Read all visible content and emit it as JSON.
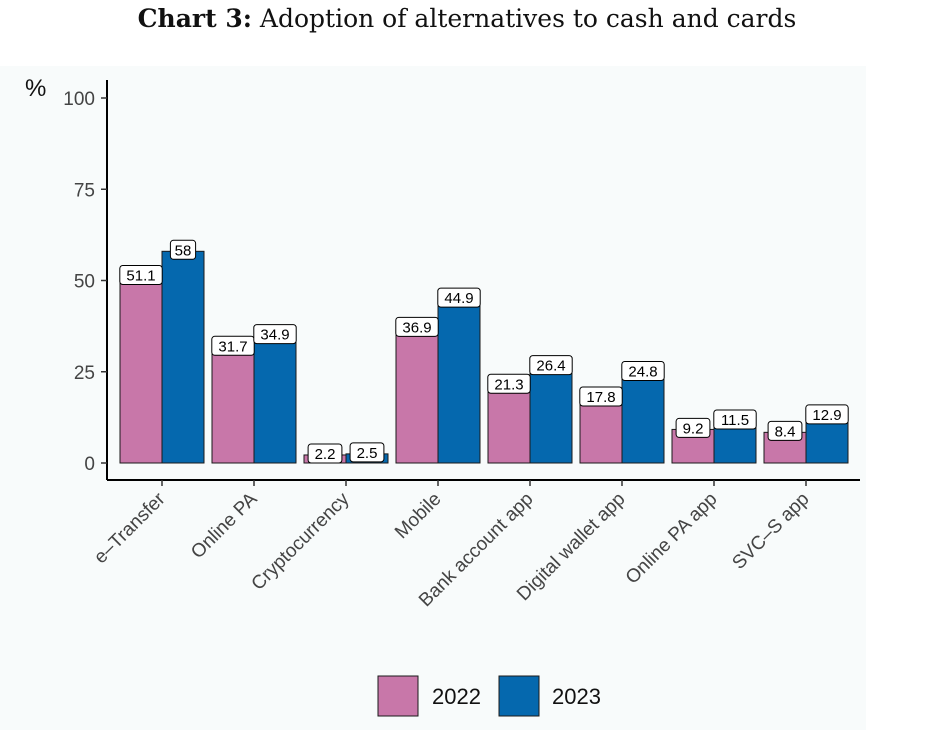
{
  "title": {
    "lead": "Chart 3:",
    "text": "Adoption of alternatives to cash and cards"
  },
  "colors": {
    "2022": "#c877a9",
    "2023": "#0568ae",
    "panel": "#f8fbfb"
  },
  "chart_data": {
    "type": "bar",
    "title": "Chart 3: Adoption of alternatives to cash and cards",
    "ylabel": "%",
    "xlabel": "",
    "ylim": [
      0,
      100
    ],
    "yticks": [
      0,
      25,
      50,
      75,
      100
    ],
    "grid": false,
    "legend": "bottom",
    "categories": [
      "e–Transfer",
      "Online PA",
      "Cryptocurrency",
      "Mobile",
      "Bank account app",
      "Digital wallet app",
      "Online PA app",
      "SVC–S app"
    ],
    "series": [
      {
        "name": "2022",
        "values": [
          51.1,
          31.7,
          2.2,
          36.9,
          21.3,
          17.8,
          9.2,
          8.4
        ]
      },
      {
        "name": "2023",
        "values": [
          58,
          34.9,
          2.5,
          44.9,
          26.4,
          24.8,
          11.5,
          12.9
        ]
      }
    ]
  }
}
